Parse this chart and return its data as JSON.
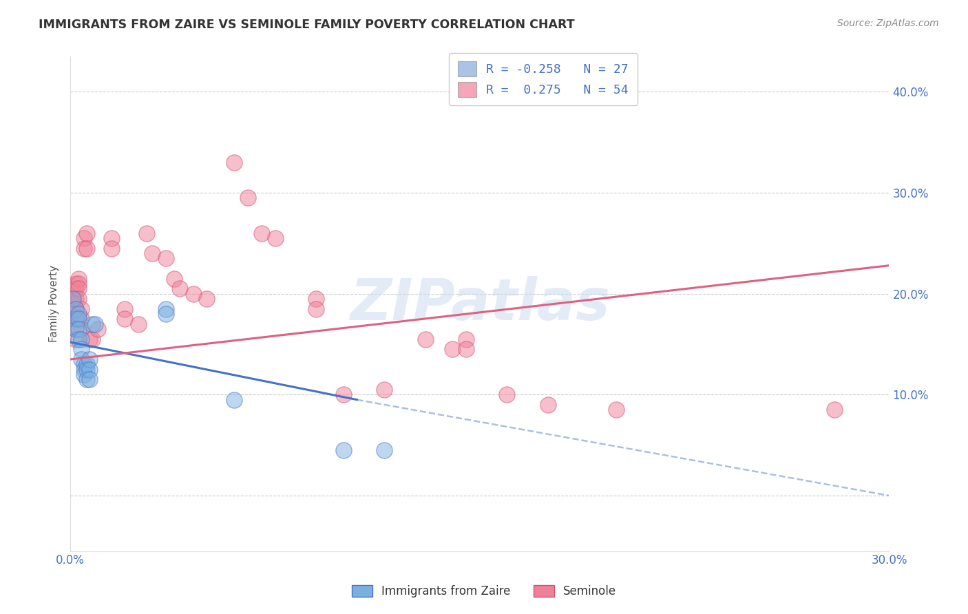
{
  "title": "IMMIGRANTS FROM ZAIRE VS SEMINOLE FAMILY POVERTY CORRELATION CHART",
  "source": "Source: ZipAtlas.com",
  "ylabel": "Family Poverty",
  "y_ticks": [
    0.0,
    0.1,
    0.2,
    0.3,
    0.4
  ],
  "y_tick_labels": [
    "",
    "10.0%",
    "20.0%",
    "30.0%",
    "40.0%"
  ],
  "x_range": [
    0.0,
    0.3
  ],
  "y_range": [
    -0.055,
    0.435
  ],
  "legend_entries": [
    {
      "label": "R = -0.258   N = 27",
      "color": "#aac4e8"
    },
    {
      "label": "R =  0.275   N = 54",
      "color": "#f4a7b9"
    }
  ],
  "zaire_color": "#7ab0e0",
  "seminole_color": "#f08098",
  "blue_line_color": "#4472c4",
  "pink_line_color": "#e06080",
  "watermark": "ZIPatlas",
  "blue_line_solid": [
    [
      0.0,
      0.152
    ],
    [
      0.105,
      0.095
    ]
  ],
  "blue_line_dash": [
    [
      0.105,
      0.095
    ],
    [
      0.3,
      0.0
    ]
  ],
  "pink_line": [
    [
      0.0,
      0.135
    ],
    [
      0.3,
      0.228
    ]
  ],
  "zaire_points": [
    [
      0.001,
      0.195
    ],
    [
      0.002,
      0.185
    ],
    [
      0.002,
      0.175
    ],
    [
      0.002,
      0.165
    ],
    [
      0.003,
      0.18
    ],
    [
      0.003,
      0.175
    ],
    [
      0.003,
      0.165
    ],
    [
      0.003,
      0.155
    ],
    [
      0.004,
      0.155
    ],
    [
      0.004,
      0.145
    ],
    [
      0.004,
      0.135
    ],
    [
      0.005,
      0.13
    ],
    [
      0.005,
      0.125
    ],
    [
      0.005,
      0.12
    ],
    [
      0.006,
      0.13
    ],
    [
      0.006,
      0.125
    ],
    [
      0.006,
      0.115
    ],
    [
      0.007,
      0.135
    ],
    [
      0.007,
      0.125
    ],
    [
      0.007,
      0.115
    ],
    [
      0.008,
      0.17
    ],
    [
      0.009,
      0.17
    ],
    [
      0.035,
      0.185
    ],
    [
      0.035,
      0.18
    ],
    [
      0.06,
      0.095
    ],
    [
      0.1,
      0.045
    ],
    [
      0.115,
      0.045
    ]
  ],
  "seminole_points": [
    [
      0.001,
      0.195
    ],
    [
      0.001,
      0.19
    ],
    [
      0.001,
      0.185
    ],
    [
      0.001,
      0.18
    ],
    [
      0.001,
      0.175
    ],
    [
      0.002,
      0.21
    ],
    [
      0.002,
      0.205
    ],
    [
      0.002,
      0.195
    ],
    [
      0.002,
      0.185
    ],
    [
      0.002,
      0.175
    ],
    [
      0.002,
      0.165
    ],
    [
      0.002,
      0.155
    ],
    [
      0.003,
      0.215
    ],
    [
      0.003,
      0.21
    ],
    [
      0.003,
      0.205
    ],
    [
      0.003,
      0.195
    ],
    [
      0.004,
      0.185
    ],
    [
      0.004,
      0.175
    ],
    [
      0.004,
      0.165
    ],
    [
      0.005,
      0.255
    ],
    [
      0.005,
      0.245
    ],
    [
      0.006,
      0.26
    ],
    [
      0.006,
      0.245
    ],
    [
      0.007,
      0.155
    ],
    [
      0.008,
      0.155
    ],
    [
      0.01,
      0.165
    ],
    [
      0.015,
      0.255
    ],
    [
      0.015,
      0.245
    ],
    [
      0.02,
      0.185
    ],
    [
      0.02,
      0.175
    ],
    [
      0.025,
      0.17
    ],
    [
      0.028,
      0.26
    ],
    [
      0.03,
      0.24
    ],
    [
      0.035,
      0.235
    ],
    [
      0.038,
      0.215
    ],
    [
      0.04,
      0.205
    ],
    [
      0.045,
      0.2
    ],
    [
      0.05,
      0.195
    ],
    [
      0.06,
      0.33
    ],
    [
      0.065,
      0.295
    ],
    [
      0.07,
      0.26
    ],
    [
      0.075,
      0.255
    ],
    [
      0.09,
      0.195
    ],
    [
      0.09,
      0.185
    ],
    [
      0.1,
      0.1
    ],
    [
      0.115,
      0.105
    ],
    [
      0.13,
      0.155
    ],
    [
      0.14,
      0.145
    ],
    [
      0.145,
      0.155
    ],
    [
      0.145,
      0.145
    ],
    [
      0.16,
      0.1
    ],
    [
      0.175,
      0.09
    ],
    [
      0.2,
      0.085
    ],
    [
      0.28,
      0.085
    ]
  ]
}
